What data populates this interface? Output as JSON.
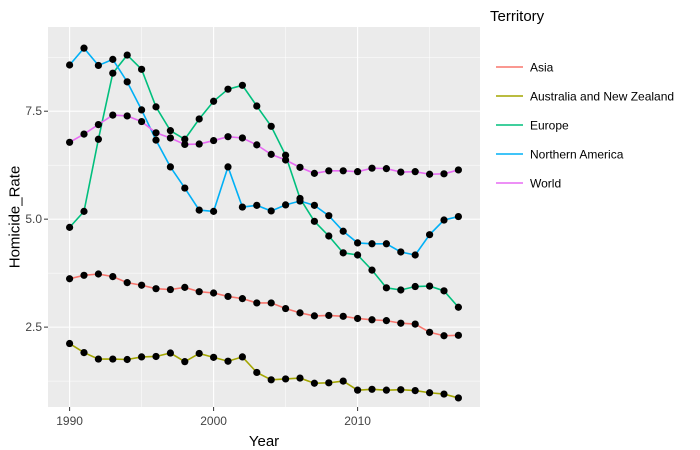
{
  "chart_data": {
    "type": "line",
    "xlabel": "Year",
    "ylabel": "Homicide_Rate",
    "xlim": [
      1988.5,
      2018.5
    ],
    "ylim": [
      0.65,
      9.45
    ],
    "xticks": [
      1990,
      2000,
      2010
    ],
    "yticks": [
      2.5,
      5.0,
      7.5
    ],
    "ytick_labels": [
      "2.5",
      "5.0",
      "7.5"
    ],
    "grid": true,
    "legend_position": "right",
    "legend_title": "Territory",
    "x": [
      1990,
      1991,
      1992,
      1993,
      1994,
      1995,
      1996,
      1997,
      1998,
      1999,
      2000,
      2001,
      2002,
      2003,
      2004,
      2005,
      2006,
      2007,
      2008,
      2009,
      2010,
      2011,
      2012,
      2013,
      2014,
      2015,
      2016,
      2017
    ],
    "series": [
      {
        "name": "Asia",
        "color": "#F8766D",
        "values": [
          3.62,
          3.7,
          3.73,
          3.67,
          3.53,
          3.47,
          3.39,
          3.37,
          3.42,
          3.32,
          3.29,
          3.21,
          3.16,
          3.06,
          3.06,
          2.93,
          2.83,
          2.76,
          2.77,
          2.75,
          2.7,
          2.67,
          2.65,
          2.59,
          2.57,
          2.38,
          2.3,
          2.31
        ]
      },
      {
        "name": "Australia and New Zealand",
        "color": "#A3A500",
        "values": [
          2.12,
          1.91,
          1.76,
          1.76,
          1.75,
          1.81,
          1.82,
          1.9,
          1.7,
          1.89,
          1.8,
          1.71,
          1.81,
          1.45,
          1.28,
          1.3,
          1.32,
          1.2,
          1.21,
          1.25,
          1.04,
          1.06,
          1.04,
          1.05,
          1.03,
          0.98,
          0.95,
          0.86
        ]
      },
      {
        "name": "Europe",
        "color": "#00BF7D",
        "values": [
          4.81,
          5.18,
          6.85,
          8.38,
          8.8,
          8.47,
          7.6,
          7.05,
          6.85,
          7.32,
          7.73,
          8.01,
          8.1,
          7.62,
          7.15,
          6.48,
          5.48,
          4.95,
          4.61,
          4.22,
          4.17,
          3.82,
          3.41,
          3.36,
          3.44,
          3.45,
          3.34,
          2.96
        ]
      },
      {
        "name": "Northern America",
        "color": "#00B0F6",
        "values": [
          8.57,
          8.96,
          8.56,
          8.7,
          8.18,
          7.53,
          6.83,
          6.21,
          5.72,
          5.21,
          5.18,
          6.21,
          5.28,
          5.32,
          5.19,
          5.33,
          5.42,
          5.32,
          5.08,
          4.72,
          4.45,
          4.43,
          4.43,
          4.24,
          4.17,
          4.64,
          4.98,
          5.06
        ]
      },
      {
        "name": "World",
        "color": "#E76BF3",
        "values": [
          6.78,
          6.97,
          7.19,
          7.41,
          7.39,
          7.26,
          7.0,
          6.88,
          6.73,
          6.74,
          6.82,
          6.91,
          6.88,
          6.72,
          6.5,
          6.37,
          6.2,
          6.06,
          6.12,
          6.12,
          6.1,
          6.18,
          6.17,
          6.09,
          6.1,
          6.04,
          6.05,
          6.14
        ]
      }
    ]
  }
}
